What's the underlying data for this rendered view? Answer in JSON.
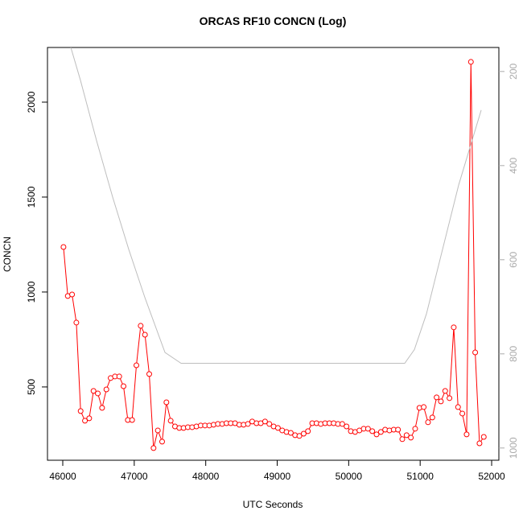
{
  "chart_data": {
    "type": "line",
    "title": "ORCAS RF10 CONCN (Log)",
    "x_label": "UTC Seconds",
    "y_label": "CONCN",
    "xlim": [
      45786,
      52101
    ],
    "xticks": [
      46000,
      47000,
      48000,
      49000,
      50000,
      51000,
      52000
    ],
    "ylim": [
      114,
      2288
    ],
    "yticks": [
      500,
      1000,
      1500,
      2000
    ],
    "y2lim": [
      1026,
      149
    ],
    "y2ticks": [
      200,
      400,
      600,
      800,
      1000
    ],
    "series": [
      {
        "color": "#ff0000",
        "markers": true,
        "x": [
          46010,
          46070,
          46130,
          46190,
          46250,
          46310,
          46370,
          46430,
          46490,
          46550,
          46610,
          46670,
          46730,
          46790,
          46850,
          46910,
          46970,
          47030,
          47090,
          47150,
          47210,
          47270,
          47330,
          47390,
          47450,
          47510,
          47570,
          47630,
          47690,
          47750,
          47810,
          47870,
          47930,
          47990,
          48050,
          48110,
          48170,
          48230,
          48290,
          48350,
          48410,
          48470,
          48530,
          48590,
          48650,
          48710,
          48770,
          48830,
          48890,
          48950,
          49010,
          49070,
          49130,
          49190,
          49250,
          49310,
          49370,
          49430,
          49490,
          49550,
          49610,
          49670,
          49730,
          49790,
          49850,
          49910,
          49970,
          50030,
          50090,
          50150,
          50210,
          50270,
          50330,
          50390,
          50450,
          50510,
          50570,
          50630,
          50690,
          50750,
          50810,
          50870,
          50930,
          50990,
          51050,
          51110,
          51170,
          51230,
          51290,
          51350,
          51410,
          51470,
          51530,
          51590,
          51650,
          51710,
          51770,
          51830,
          51890
        ],
        "values": [
          1237,
          979,
          987,
          839,
          373,
          322,
          335,
          479,
          466,
          390,
          487,
          547,
          555,
          555,
          504,
          326,
          326,
          614,
          822,
          775,
          568,
          178,
          271,
          212,
          419,
          322,
          292,
          284,
          284,
          288,
          288,
          292,
          297,
          297,
          297,
          301,
          305,
          305,
          309,
          309,
          309,
          301,
          301,
          305,
          318,
          309,
          309,
          318,
          305,
          292,
          284,
          271,
          263,
          258,
          246,
          242,
          254,
          267,
          309,
          309,
          305,
          309,
          309,
          309,
          305,
          305,
          292,
          267,
          263,
          271,
          280,
          280,
          267,
          250,
          263,
          275,
          271,
          275,
          275,
          225,
          246,
          233,
          280,
          390,
          394,
          314,
          339,
          445,
          424,
          479,
          441,
          814,
          394,
          360,
          250,
          2212,
          682,
          203,
          237
        ]
      },
      {
        "color": "#bebebe",
        "axis": "y2",
        "x": [
          46113,
          46248,
          46473,
          46698,
          46923,
          47148,
          47430,
          47655,
          50784,
          50919,
          51088,
          51313,
          51539,
          51854
        ],
        "values": [
          149,
          219,
          347,
          467,
          578,
          680,
          797,
          820,
          820,
          791,
          715,
          578,
          441,
          282
        ]
      }
    ]
  }
}
